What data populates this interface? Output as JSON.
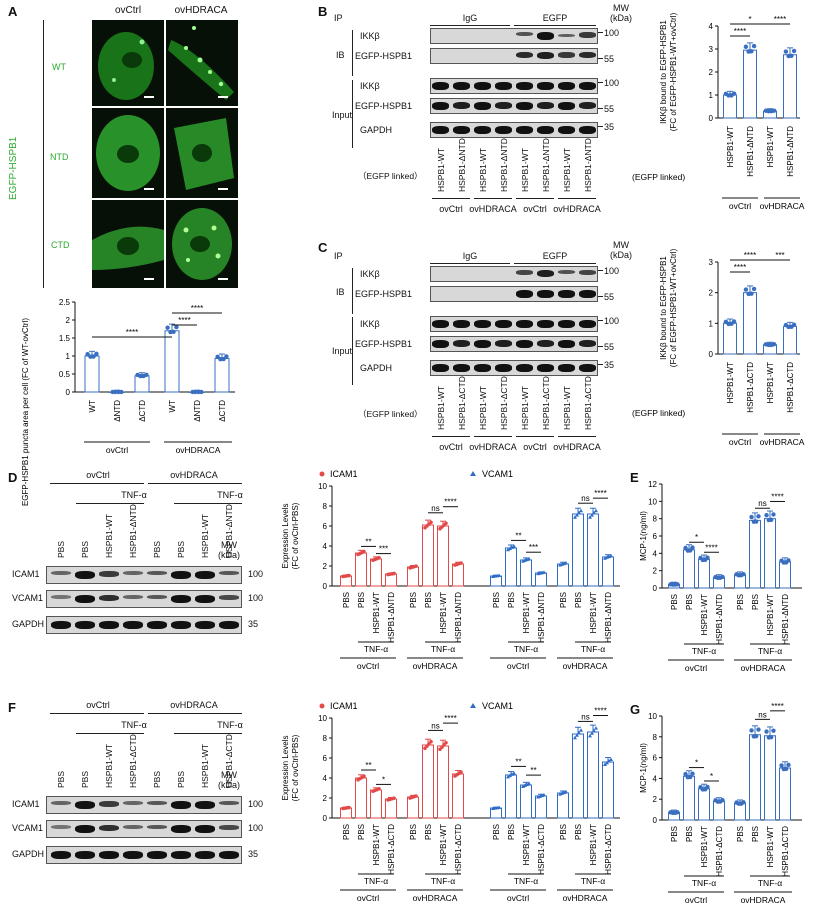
{
  "panel_A": {
    "letter": "A",
    "col_labels": [
      "ovCtrl",
      "ovHDRACA"
    ],
    "row_labels": [
      "WT",
      "NTD",
      "CTD"
    ],
    "side_label": "EGFP-HSPB1",
    "chart_ylabel": "EGFP-HSPB1 puncta area per cell (FC of WT-ovCtrl)",
    "x_ticks": [
      "WT",
      "ΔNTD",
      "ΔCTD",
      "WT",
      "ΔNTD",
      "ΔCTD"
    ],
    "groups": [
      "ovCtrl",
      "ovHDRACA"
    ],
    "sig": [
      "****",
      "****",
      "****"
    ]
  },
  "panel_B": {
    "letter": "B",
    "ip": "IP",
    "ib": "IB",
    "input": "Input",
    "igg": "IgG",
    "egfp": "EGFP",
    "mw": "MW (kDa)",
    "rows": [
      "IKKβ",
      "EGFP-HSPB1",
      "IKKβ",
      "EGFP-HSPB1",
      "GAPDH"
    ],
    "mw_marks": [
      "100",
      "55",
      "100",
      "55",
      "35"
    ],
    "lanes": [
      "HSPB1-WT",
      "HSPB1-ΔNTD",
      "HSPB1-WT",
      "HSPB1-ΔNTD",
      "HSPB1-WT",
      "HSPB1-ΔNTD",
      "HSPB1-WT",
      "HSPB1-ΔNTD"
    ],
    "egfp_linked": "（EGFP linked）",
    "groups": [
      "ovCtrl",
      "ovHDRACA",
      "ovCtrl",
      "ovHDRACA"
    ],
    "chart_ylabel": "IKKβ bound to EGFP-HSPB1 (FC of EGFP-HSPB1-WT+ovCtrl)",
    "chart_ticks": [
      "HSPB1-WT",
      "HSPB1-ΔNTD",
      "HSPB1-WT",
      "HSPB1-ΔNTD"
    ],
    "chart_egfp": "(EGFP linked)",
    "chart_groups": [
      "ovCtrl",
      "ovHDRACA"
    ],
    "sig": [
      "****",
      "*",
      "****"
    ]
  },
  "panel_C": {
    "letter": "C",
    "ip": "IP",
    "ib": "IB",
    "input": "Input",
    "igg": "IgG",
    "egfp": "EGFP",
    "mw": "MW (kDa)",
    "rows": [
      "IKKβ",
      "EGFP-HSPB1",
      "IKKβ",
      "EGFP-HSPB1",
      "GAPDH"
    ],
    "mw_marks": [
      "100",
      "55",
      "100",
      "55",
      "35"
    ],
    "lanes": [
      "HSPB1-WT",
      "HSPB1-ΔCTD",
      "HSPB1-WT",
      "HSPB1-ΔCTD",
      "HSPB1-WT",
      "HSPB1-ΔCTD",
      "HSPB1-WT",
      "HSPB1-ΔCTD"
    ],
    "egfp_linked": "（EGFP linked）",
    "groups": [
      "ovCtrl",
      "ovHDRACA",
      "ovCtrl",
      "ovHDRACA"
    ],
    "chart_ylabel": "IKKβ bound to EGFP-HSPB1 (FC of EGFP-HSPB1-WT+ovCtrl)",
    "chart_ticks": [
      "HSPB1-WT",
      "HSPB1-ΔCTD",
      "HSPB1-WT",
      "HSPB1-ΔCTD"
    ],
    "chart_egfp": "(EGFP linked)",
    "chart_groups": [
      "ovCtrl",
      "ovHDRACA"
    ],
    "sig": [
      "****",
      "****",
      "***"
    ]
  },
  "panel_D": {
    "letter": "D",
    "groups": [
      "ovCtrl",
      "ovHDRACA"
    ],
    "tnf": "TNF-α",
    "lanes": [
      "PBS",
      "PBS",
      "HSPB1-WT",
      "HSPB1-ΔNTD",
      "PBS",
      "PBS",
      "HSPB1-WT",
      "HSPB1-ΔNTD"
    ],
    "mw": "MW (kDa)",
    "rows": [
      "ICAM1",
      "VCAM1",
      "GAPDH"
    ],
    "mw_marks": [
      "100",
      "100",
      "35"
    ],
    "chart_ylabel": "Expression Levels (FC of ovCtrl-PBS)",
    "legend": [
      "ICAM1",
      "VCAM1"
    ],
    "ticks": [
      "PBS",
      "PBS",
      "HSPB1-WT",
      "HSPB1-ΔNTD"
    ],
    "sig_icam": [
      "**",
      "***",
      "ns",
      "****"
    ],
    "sig_vcam": [
      "**",
      "***",
      "ns",
      "****"
    ]
  },
  "panel_E": {
    "letter": "E",
    "ylabel": "MCP-1(ng/ml)",
    "ticks": [
      "PBS",
      "PBS",
      "HSPB1-WT",
      "HSPB1-ΔNTD",
      "PBS",
      "PBS",
      "HSPB1-WT",
      "HSPB1-ΔNTD"
    ],
    "tnf": "TNF-α",
    "groups": [
      "ovCtrl",
      "ovHDRACA"
    ],
    "sig": [
      "*",
      "****",
      "ns",
      "****"
    ]
  },
  "panel_F": {
    "letter": "F",
    "groups": [
      "ovCtrl",
      "ovHDRACA"
    ],
    "tnf": "TNF-α",
    "lanes": [
      "PBS",
      "PBS",
      "HSPB1-WT",
      "HSPB1-ΔCTD",
      "PBS",
      "PBS",
      "HSPB1-WT",
      "HSPB1-ΔCTD"
    ],
    "mw": "MW (kDa)",
    "rows": [
      "ICAM1",
      "VCAM1",
      "GAPDH"
    ],
    "mw_marks": [
      "100",
      "100",
      "35"
    ],
    "chart_ylabel": "Expression Levels (FC of ovCtrl-PBS)",
    "legend": [
      "ICAM1",
      "VCAM1"
    ],
    "ticks": [
      "PBS",
      "PBS",
      "HSPB1-WT",
      "HSPB1-ΔCTD"
    ],
    "sig_icam": [
      "**",
      "*",
      "ns",
      "****"
    ],
    "sig_vcam": [
      "**",
      "**",
      "ns",
      "****"
    ]
  },
  "panel_G": {
    "letter": "G",
    "ylabel": "MCP-1(ng/ml)",
    "ticks": [
      "PBS",
      "PBS",
      "HSPB1-WT",
      "HSPB1-ΔCTD",
      "PBS",
      "PBS",
      "HSPB1-WT",
      "HSPB1-ΔCTD"
    ],
    "tnf": "TNF-α",
    "groups": [
      "ovCtrl",
      "ovHDRACA"
    ],
    "sig": [
      "*",
      "*",
      "ns",
      "****"
    ]
  },
  "chart_data": [
    {
      "id": "A",
      "type": "bar",
      "categories": [
        "WT",
        "ΔNTD",
        "ΔCTD",
        "WT",
        "ΔNTD",
        "ΔCTD"
      ],
      "values": [
        1.0,
        0.0,
        0.45,
        1.7,
        0.0,
        0.93
      ],
      "ylim": [
        0,
        2.5
      ],
      "yticks": [
        0,
        0.5,
        1.0,
        1.5,
        2.0,
        2.5
      ]
    },
    {
      "id": "B",
      "type": "bar",
      "categories": [
        "HSPB1-WT",
        "HSPB1-ΔNTD",
        "HSPB1-WT",
        "HSPB1-ΔNTD"
      ],
      "values": [
        1.0,
        2.95,
        0.3,
        2.75
      ],
      "ylim": [
        0,
        4
      ],
      "yticks": [
        0,
        1,
        2,
        3,
        4
      ]
    },
    {
      "id": "C",
      "type": "bar",
      "categories": [
        "HSPB1-WT",
        "HSPB1-ΔCTD",
        "HSPB1-WT",
        "HSPB1-ΔCTD"
      ],
      "values": [
        1.0,
        2.0,
        0.3,
        0.9
      ],
      "ylim": [
        0,
        3
      ],
      "yticks": [
        0,
        1,
        2,
        3
      ]
    },
    {
      "id": "D",
      "type": "bar",
      "categories": [
        "PBS",
        "PBS",
        "HSPB1-WT",
        "HSPB1-ΔNTD",
        "PBS",
        "PBS",
        "HSPB1-WT",
        "HSPB1-ΔNTD"
      ],
      "ylim": [
        0,
        10
      ],
      "yticks": [
        0,
        2,
        4,
        6,
        8,
        10
      ],
      "series": [
        {
          "name": "ICAM1",
          "values": [
            1.0,
            3.3,
            2.7,
            1.2,
            1.9,
            6.1,
            6.0,
            2.2
          ]
        },
        {
          "name": "VCAM1",
          "values": [
            1.0,
            3.8,
            2.6,
            1.3,
            2.2,
            7.2,
            7.2,
            2.9
          ]
        }
      ]
    },
    {
      "id": "E",
      "type": "bar",
      "categories": [
        "PBS",
        "PBS",
        "HSPB1-WT",
        "HSPB1-ΔNTD",
        "PBS",
        "PBS",
        "HSPB1-WT",
        "HSPB1-ΔNTD"
      ],
      "values": [
        0.4,
        4.4,
        3.3,
        1.2,
        1.5,
        7.8,
        8.0,
        3.0
      ],
      "ylim": [
        0,
        12
      ],
      "yticks": [
        0,
        2,
        4,
        6,
        8,
        10,
        12
      ]
    },
    {
      "id": "F",
      "type": "bar",
      "categories": [
        "PBS",
        "PBS",
        "HSPB1-WT",
        "HSPB1-ΔCTD",
        "PBS",
        "PBS",
        "HSPB1-WT",
        "HSPB1-ΔCTD"
      ],
      "ylim": [
        0,
        10
      ],
      "yticks": [
        0,
        2,
        4,
        6,
        8,
        10
      ],
      "series": [
        {
          "name": "ICAM1",
          "values": [
            1.0,
            4.0,
            2.8,
            1.9,
            2.1,
            7.3,
            7.2,
            4.4
          ]
        },
        {
          "name": "VCAM1",
          "values": [
            1.0,
            4.3,
            3.3,
            2.2,
            2.5,
            8.4,
            8.6,
            5.6
          ]
        }
      ]
    },
    {
      "id": "G",
      "type": "bar",
      "categories": [
        "PBS",
        "PBS",
        "HSPB1-WT",
        "HSPB1-ΔCTD",
        "PBS",
        "PBS",
        "HSPB1-WT",
        "HSPB1-ΔCTD"
      ],
      "values": [
        0.7,
        4.2,
        3.0,
        1.8,
        1.6,
        8.2,
        8.1,
        5.0
      ],
      "ylim": [
        0,
        10
      ],
      "yticks": [
        0,
        2,
        4,
        6,
        8,
        10
      ]
    }
  ],
  "colors": {
    "green": "#33b833",
    "blue_bar": "#3a6fc0",
    "red_bar": "#e24a4a",
    "blue_series": "#2f6ec7"
  }
}
